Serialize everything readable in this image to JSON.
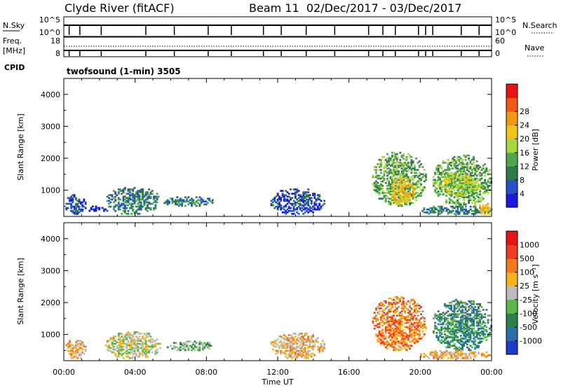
{
  "header": {
    "title": "Clyde River (fitACF)",
    "beam_info": "Beam 11  02/Dec/2017 - 03/Dec/2017"
  },
  "status_panel": {
    "nsky_label": "N.Sky",
    "nsky_ticks": [
      "10^5",
      "10^0"
    ],
    "nsearch_label": "N.Search",
    "nsearch_ticks": [
      "10^5",
      "10^0"
    ],
    "freq_label_1": "Freq.",
    "freq_label_2": "[MHz]",
    "freq_ticks": [
      "18",
      "8"
    ],
    "nave_label": "Nave",
    "nave_ticks": [
      "60",
      "0"
    ],
    "cpid_label": "CPID",
    "cpid_text": "twofsound (1-min) 3505"
  },
  "chart_data": [
    {
      "type": "heatmap",
      "panel": "power",
      "ylabel": "Slant Range [km]",
      "y_ticks": [
        "1000",
        "2000",
        "3000",
        "4000"
      ],
      "ylim": [
        180,
        4500
      ],
      "x_ticks": [
        "00:00",
        "04:00",
        "08:00",
        "12:00",
        "16:00",
        "20:00",
        "00:00"
      ],
      "xlim_hours": [
        0,
        24
      ],
      "colorbar": {
        "label": "Power [dB]",
        "tick_labels": [
          "4",
          "8",
          "12",
          "16",
          "20",
          "24",
          "28"
        ],
        "colors": [
          "#1a1adc",
          "#2850c8",
          "#2f7a4a",
          "#4fa64f",
          "#a8d840",
          "#f0c418",
          "#f09a14",
          "#f05a14",
          "#e81414"
        ]
      },
      "clusters": [
        {
          "t": [
            0.0,
            1.2
          ],
          "r": [
            200,
            850
          ],
          "v": 1
        },
        {
          "t": [
            1.3,
            2.5
          ],
          "r": [
            250,
            500
          ],
          "v": 0
        },
        {
          "t": [
            2.3,
            5.4
          ],
          "r": [
            200,
            1100
          ],
          "v": 2
        },
        {
          "t": [
            5.5,
            8.4
          ],
          "r": [
            450,
            800
          ],
          "v": 2
        },
        {
          "t": [
            11.5,
            14.6
          ],
          "r": [
            200,
            1050
          ],
          "v": 1
        },
        {
          "t": [
            17.2,
            20.3
          ],
          "r": [
            450,
            2200
          ],
          "v": 3
        },
        {
          "t": [
            18.2,
            19.6
          ],
          "r": [
            500,
            1400
          ],
          "v": 5
        },
        {
          "t": [
            20.6,
            24.0
          ],
          "r": [
            450,
            2100
          ],
          "v": 3
        },
        {
          "t": [
            21.0,
            23.3
          ],
          "r": [
            800,
            1500
          ],
          "v": 4
        },
        {
          "t": [
            19.8,
            24.0
          ],
          "r": [
            200,
            500
          ],
          "v": 2
        },
        {
          "t": [
            23.2,
            24.0
          ],
          "r": [
            200,
            600
          ],
          "v": 5
        }
      ]
    },
    {
      "type": "heatmap",
      "panel": "velocity",
      "ylabel": "Slant Range [km]",
      "y_ticks": [
        "1000",
        "2000",
        "3000",
        "4000"
      ],
      "ylim": [
        180,
        4500
      ],
      "x_ticks": [
        "00:00",
        "04:00",
        "08:00",
        "12:00",
        "16:00",
        "20:00",
        "00:00"
      ],
      "xlim_hours": [
        0,
        24
      ],
      "xlabel": "Time UT",
      "colorbar": {
        "label": "Velocity [m s⁻¹]",
        "tick_labels": [
          "1000",
          "500",
          "100",
          "25",
          "-25",
          "-100",
          "-500",
          "-1000"
        ],
        "colors": [
          "#1e3cc8",
          "#2b6fa8",
          "#2f7f4e",
          "#5bb64b",
          "#bcbcbc",
          "#f2b419",
          "#f07a1e",
          "#ef3c1e",
          "#e61414"
        ]
      },
      "clusters": [
        {
          "t": [
            0.0,
            1.2
          ],
          "r": [
            200,
            850
          ],
          "v": 5
        },
        {
          "t": [
            2.3,
            5.4
          ],
          "r": [
            200,
            1100
          ],
          "v": 4
        },
        {
          "t": [
            5.5,
            8.4
          ],
          "r": [
            450,
            800
          ],
          "v": 3
        },
        {
          "t": [
            11.5,
            14.6
          ],
          "r": [
            200,
            1050
          ],
          "v": 5
        },
        {
          "t": [
            17.2,
            20.3
          ],
          "r": [
            450,
            2200
          ],
          "v": 6
        },
        {
          "t": [
            20.6,
            24.0
          ],
          "r": [
            450,
            2100
          ],
          "v": 2
        },
        {
          "t": [
            19.8,
            24.0
          ],
          "r": [
            200,
            500
          ],
          "v": 5
        }
      ]
    }
  ]
}
